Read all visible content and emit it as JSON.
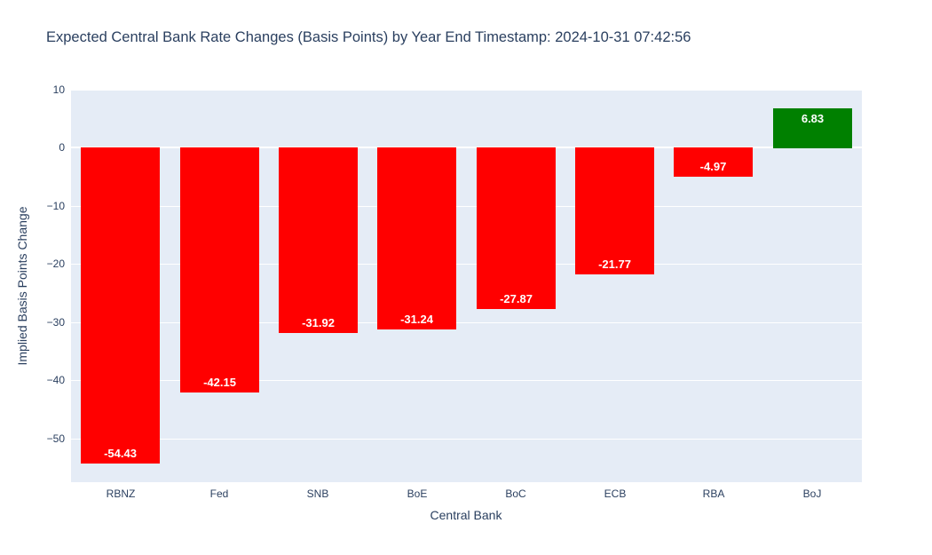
{
  "title": "Expected Central Bank Rate Changes (Basis Points) by Year End Timestamp: 2024-10-31 07:42:56",
  "chart_data": {
    "type": "bar",
    "title": "Expected Central Bank Rate Changes (Basis Points) by Year End Timestamp: 2024-10-31 07:42:56",
    "xlabel": "Central Bank",
    "ylabel": "Implied Basis Points Change",
    "categories": [
      "RBNZ",
      "Fed",
      "SNB",
      "BoE",
      "BoC",
      "ECB",
      "RBA",
      "BoJ"
    ],
    "values": [
      -54.43,
      -42.15,
      -31.92,
      -31.24,
      -27.87,
      -21.77,
      -4.97,
      6.83
    ],
    "bar_labels": [
      "-54.43",
      "-42.15",
      "-31.92",
      "-31.24",
      "-27.87",
      "-21.77",
      "-4.97",
      "6.83"
    ],
    "yticks": [
      10,
      0,
      -10,
      -20,
      -30,
      -40,
      -50
    ],
    "ytick_labels": [
      "10",
      "0",
      "−10",
      "−20",
      "−30",
      "−40",
      "−50"
    ],
    "ylim": [
      -57.5,
      10.0
    ],
    "grid": true,
    "legend": false,
    "bar_width_fraction": 0.8,
    "colors": {
      "positive": "#008000",
      "negative": "#ff0000",
      "plot_background": "#e5ecf6",
      "gridline": "#ffffff",
      "font": "#2a3f5f",
      "bar_label_text": "#ffffff"
    }
  }
}
